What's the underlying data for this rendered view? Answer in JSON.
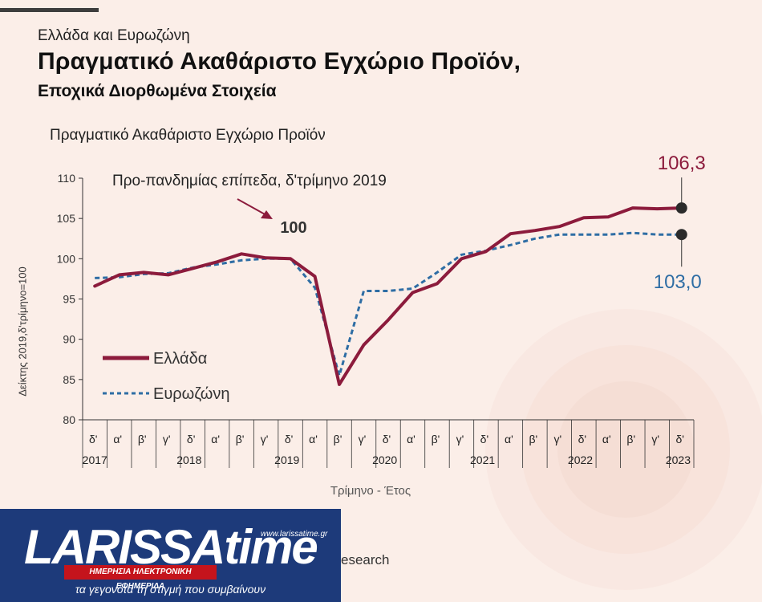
{
  "header": {
    "eyebrow": "Ελλάδα και Ευρωζώνη",
    "title": "Πραγματικό Ακαθάριστο Εγχώριο Προϊόν,",
    "subtitle": "Εποχικά Διορθωμένα Στοιχεία"
  },
  "chart_data": {
    "type": "line",
    "title": "Πραγματικό Ακαθάριστο Εγχώριο Προϊόν",
    "ylabel": "Δείκτης 2019,δ'τρίμηνο=100",
    "xlabel": "Τρίμηνο - Έτος",
    "ylim": [
      80,
      110
    ],
    "yticks": [
      80,
      85,
      90,
      95,
      100,
      105,
      110
    ],
    "quarters": [
      "δ'",
      "α'",
      "β'",
      "γ'",
      "δ'",
      "α'",
      "β'",
      "γ'",
      "δ'",
      "α'",
      "β'",
      "γ'",
      "δ'",
      "α'",
      "β'",
      "γ'",
      "δ'",
      "α'",
      "β'",
      "γ'",
      "δ'",
      "α'",
      "β'",
      "γ'",
      "δ'"
    ],
    "years": [
      {
        "label": "2017",
        "start": 0,
        "end": 0
      },
      {
        "label": "2018",
        "start": 1,
        "end": 4
      },
      {
        "label": "2019",
        "start": 5,
        "end": 8
      },
      {
        "label": "2020",
        "start": 9,
        "end": 12
      },
      {
        "label": "2021",
        "start": 13,
        "end": 16
      },
      {
        "label": "2022",
        "start": 17,
        "end": 20
      },
      {
        "label": "2023",
        "start": 21,
        "end": 24
      }
    ],
    "series": [
      {
        "name": "Ελλάδα",
        "color": "#8c1b3c",
        "style": "solid",
        "values": [
          96.6,
          98.0,
          98.3,
          98.0,
          98.8,
          99.6,
          100.6,
          100.1,
          100.0,
          97.8,
          84.4,
          89.3,
          92.4,
          95.8,
          96.9,
          100.0,
          100.9,
          103.1,
          103.5,
          104.0,
          105.1,
          105.2,
          106.3,
          106.2,
          106.3
        ]
      },
      {
        "name": "Ευρωζώνη",
        "color": "#2e6da4",
        "style": "dashed",
        "values": [
          97.6,
          97.7,
          98.1,
          98.2,
          98.9,
          99.3,
          99.8,
          100.0,
          100.0,
          96.4,
          85.5,
          96.0,
          96.0,
          96.3,
          98.3,
          100.5,
          101.0,
          101.7,
          102.5,
          103.0,
          103.0,
          103.0,
          103.2,
          103.0,
          103.0
        ]
      }
    ],
    "annotations": {
      "prepandemic_label": "Προ-πανδημίας επίπεδα, δ'τρίμηνο 2019",
      "prepandemic_value": "100",
      "greece_end": "106,3",
      "euro_end": "103,0"
    },
    "legend_position": "left-bottom"
  },
  "footer": {
    "logo_text": "LARISSAtime",
    "logo_url": "www.larissatime.gr",
    "logo_ribbon": "ΗΜΕΡΗΣΙΑ ΗΛΕΚΤΡΟΝΙΚΗ ΕΦΗΜΕΡΙΔΑ",
    "logo_slogan": "τα γεγονότα τη στιγμή που συμβαίνουν",
    "source_fragment": "esearch"
  }
}
